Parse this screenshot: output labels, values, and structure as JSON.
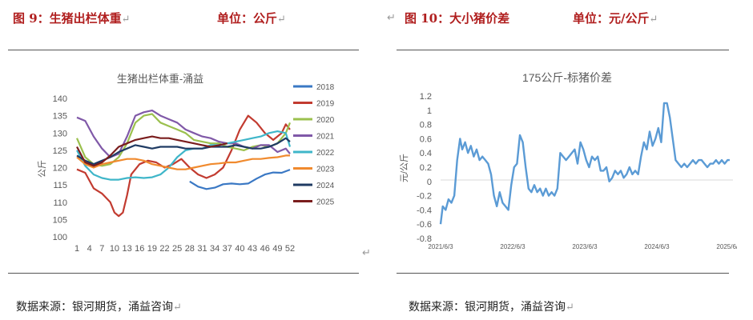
{
  "left": {
    "figure_label": "图 9：生猪出栏体重",
    "unit_label": "单位：公斤",
    "source": "数据来源：银河期货，涌益咨询"
  },
  "right": {
    "figure_label": "图 10：大小猪价差",
    "unit_label": "单位：元/公斤",
    "source": "数据来源：银河期货，涌益咨询"
  },
  "marks": {
    "return": "↵"
  },
  "colors": {
    "2018": "#3a78c4",
    "2019": "#c23b30",
    "2020": "#9bc04e",
    "2021": "#8059a8",
    "2022": "#3fb6c9",
    "2023": "#f08a2e",
    "2024": "#1f3b63",
    "2025": "#7a1d1d",
    "spread": "#5b9bd5"
  },
  "chart_data": [
    {
      "type": "line",
      "title": "生猪出栏体重-涌益",
      "ylabel": "公斤",
      "xlabel": "",
      "ylim": [
        100,
        140
      ],
      "yticks": [
        100,
        105,
        110,
        115,
        120,
        125,
        130,
        135,
        140
      ],
      "x_range": [
        1,
        52
      ],
      "xticks": [
        1,
        4,
        7,
        10,
        13,
        16,
        19,
        22,
        25,
        28,
        31,
        34,
        37,
        40,
        43,
        46,
        49,
        52
      ],
      "grid": false,
      "legend": "right",
      "series": [
        {
          "name": "2018",
          "x": [
            28,
            30,
            32,
            34,
            36,
            38,
            40,
            42,
            44,
            46,
            48,
            50,
            52
          ],
          "y": [
            116,
            114.5,
            113.8,
            114.2,
            115.2,
            115.4,
            115.2,
            115.4,
            116.8,
            118,
            118.6,
            118.5,
            119.4
          ]
        },
        {
          "name": "2019",
          "x": [
            1,
            3,
            5,
            7,
            9,
            10,
            11,
            12,
            13,
            14,
            16,
            18,
            20,
            22,
            24,
            26,
            28,
            30,
            32,
            34,
            36,
            38,
            40,
            42,
            44,
            46,
            48,
            50,
            51,
            52
          ],
          "y": [
            119.5,
            118.5,
            114,
            112.5,
            110,
            107,
            106,
            107,
            112,
            118,
            121,
            122,
            121.5,
            120,
            121,
            122.5,
            120,
            118,
            117,
            118,
            120,
            125,
            131,
            135,
            133,
            130,
            128,
            130,
            132.5,
            131
          ]
        },
        {
          "name": "2020",
          "x": [
            1,
            3,
            5,
            7,
            9,
            11,
            13,
            15,
            17,
            19,
            21,
            23,
            25,
            27,
            29,
            31,
            33,
            35,
            37,
            39,
            41,
            43,
            45,
            47,
            49,
            51,
            52
          ],
          "y": [
            128.5,
            123,
            121,
            120.5,
            121,
            123,
            127,
            133,
            135,
            135.5,
            133,
            132,
            131,
            130,
            128,
            127.5,
            127,
            127,
            126,
            125.5,
            125,
            126,
            126.5,
            126,
            127,
            130,
            133
          ]
        },
        {
          "name": "2021",
          "x": [
            1,
            3,
            5,
            7,
            9,
            11,
            13,
            15,
            17,
            19,
            21,
            23,
            25,
            27,
            29,
            31,
            33,
            35,
            37,
            39,
            41,
            43,
            45,
            47,
            49,
            51,
            52
          ],
          "y": [
            134.5,
            133.5,
            129,
            125.5,
            123,
            124,
            129,
            135,
            136,
            136.5,
            135,
            134,
            133,
            131,
            130,
            129,
            128.5,
            127.5,
            127,
            127,
            126,
            125.5,
            126.5,
            126.5,
            124.5,
            125.5,
            124
          ]
        },
        {
          "name": "2022",
          "x": [
            1,
            3,
            5,
            7,
            9,
            11,
            13,
            15,
            17,
            19,
            21,
            23,
            25,
            27,
            29,
            31,
            33,
            35,
            37,
            39,
            41,
            43,
            45,
            47,
            49,
            51,
            52
          ],
          "y": [
            125,
            120.5,
            118,
            117,
            116.5,
            116.5,
            117,
            117.2,
            117,
            117.2,
            118,
            120,
            123,
            125,
            125.5,
            125.5,
            126.5,
            126.5,
            127,
            127.5,
            128,
            128.5,
            129,
            130,
            130.5,
            130,
            126
          ]
        },
        {
          "name": "2023",
          "x": [
            1,
            3,
            5,
            7,
            9,
            11,
            13,
            15,
            17,
            19,
            21,
            23,
            25,
            27,
            29,
            31,
            33,
            35,
            37,
            39,
            41,
            43,
            45,
            47,
            49,
            51,
            52
          ],
          "y": [
            123,
            121,
            120,
            121,
            121.5,
            122,
            122.5,
            122.5,
            122,
            121,
            120.5,
            120,
            119.5,
            119.5,
            120,
            120.5,
            121,
            121.2,
            121.5,
            121.5,
            122,
            122.5,
            122.5,
            122.8,
            123,
            123.5,
            123.5
          ]
        },
        {
          "name": "2024",
          "x": [
            1,
            3,
            5,
            7,
            9,
            11,
            13,
            15,
            17,
            19,
            21,
            23,
            25,
            27,
            29,
            31,
            33,
            35,
            37,
            39,
            41,
            43,
            45,
            47,
            49,
            51,
            52
          ],
          "y": [
            123.5,
            122,
            121,
            122,
            123,
            124.5,
            125.5,
            126.5,
            126,
            125.5,
            126,
            126,
            126,
            125.5,
            125.5,
            125.5,
            126,
            126,
            126,
            126.5,
            126,
            125.5,
            125.5,
            126,
            127,
            128.5,
            127.5
          ]
        },
        {
          "name": "2025",
          "x": [
            1,
            3,
            5,
            7,
            9,
            11,
            13,
            15,
            17,
            19,
            21,
            23,
            25,
            27,
            29,
            31,
            33,
            35,
            37
          ],
          "y": [
            126,
            121.5,
            120.5,
            121.5,
            123.5,
            126,
            127,
            128,
            128.5,
            129,
            128.5,
            128.5,
            128,
            127.5,
            127,
            126.5,
            126,
            126.5,
            127
          ]
        }
      ]
    },
    {
      "type": "line",
      "title": "175公斤-标猪价差",
      "ylabel": "元/公斤",
      "xlabel": "",
      "ylim": [
        -0.8,
        1.2
      ],
      "yticks": [
        "1.2",
        "1",
        "0.8",
        "0.6",
        "0.4",
        "0.2",
        "0",
        "-0.2",
        "-0.4",
        "-0.6",
        "-0.8"
      ],
      "x_range": [
        "2021/6/3",
        "2025/6/3"
      ],
      "xticks": [
        "2021/6/3",
        "2022/6/3",
        "2023/6/3",
        "2024/6/3",
        "2025/6/3"
      ],
      "grid": false,
      "legend": "none",
      "series": [
        {
          "name": "",
          "x": [
            2021.42,
            2021.45,
            2021.49,
            2021.53,
            2021.57,
            2021.61,
            2021.65,
            2021.69,
            2021.72,
            2021.76,
            2021.8,
            2021.84,
            2021.88,
            2021.92,
            2021.96,
            2022.0,
            2022.04,
            2022.08,
            2022.12,
            2022.16,
            2022.2,
            2022.24,
            2022.28,
            2022.32,
            2022.36,
            2022.4,
            2022.44,
            2022.48,
            2022.52,
            2022.56,
            2022.6,
            2022.64,
            2022.68,
            2022.72,
            2022.76,
            2022.8,
            2022.84,
            2022.88,
            2022.92,
            2022.96,
            2023.0,
            2023.04,
            2023.08,
            2023.12,
            2023.16,
            2023.2,
            2023.24,
            2023.28,
            2023.32,
            2023.36,
            2023.4,
            2023.44,
            2023.48,
            2023.52,
            2023.56,
            2023.6,
            2023.64,
            2023.68,
            2023.72,
            2023.76,
            2023.8,
            2023.84,
            2023.88,
            2023.92,
            2023.96,
            2024.0,
            2024.04,
            2024.08,
            2024.12,
            2024.16,
            2024.2,
            2024.24,
            2024.28,
            2024.32,
            2024.36,
            2024.4,
            2024.44,
            2024.48,
            2024.52,
            2024.56,
            2024.6,
            2024.64,
            2024.68,
            2024.72,
            2024.76,
            2024.8,
            2024.84,
            2024.88,
            2024.92,
            2024.96,
            2025.0,
            2025.04,
            2025.08,
            2025.12,
            2025.16,
            2025.2,
            2025.24,
            2025.28,
            2025.32,
            2025.36,
            2025.4,
            2025.43
          ],
          "y": [
            -0.6,
            -0.35,
            -0.4,
            -0.25,
            -0.3,
            -0.2,
            0.3,
            0.6,
            0.45,
            0.55,
            0.4,
            0.5,
            0.35,
            0.45,
            0.3,
            0.35,
            0.3,
            0.25,
            0.1,
            -0.2,
            -0.35,
            -0.15,
            -0.3,
            -0.35,
            -0.4,
            -0.05,
            0.2,
            0.25,
            0.65,
            0.55,
            0.2,
            -0.1,
            -0.15,
            -0.05,
            -0.15,
            -0.1,
            -0.2,
            -0.1,
            -0.2,
            -0.15,
            -0.2,
            -0.1,
            0.4,
            0.35,
            0.3,
            0.35,
            0.4,
            0.45,
            0.25,
            0.55,
            0.45,
            0.3,
            0.2,
            0.35,
            0.3,
            0.35,
            0.15,
            0.15,
            0.2,
            0.0,
            0.05,
            0.15,
            0.1,
            0.15,
            0.05,
            0.1,
            0.2,
            0.1,
            0.15,
            0.1,
            0.35,
            0.55,
            0.45,
            0.7,
            0.5,
            0.6,
            0.75,
            0.55,
            1.1,
            1.1,
            0.9,
            0.6,
            0.3,
            0.25,
            0.2,
            0.25,
            0.2,
            0.25,
            0.3,
            0.25,
            0.3,
            0.3,
            0.25,
            0.2,
            0.25,
            0.25,
            0.3,
            0.25,
            0.3,
            0.25,
            0.3,
            0.3
          ]
        }
      ]
    }
  ]
}
